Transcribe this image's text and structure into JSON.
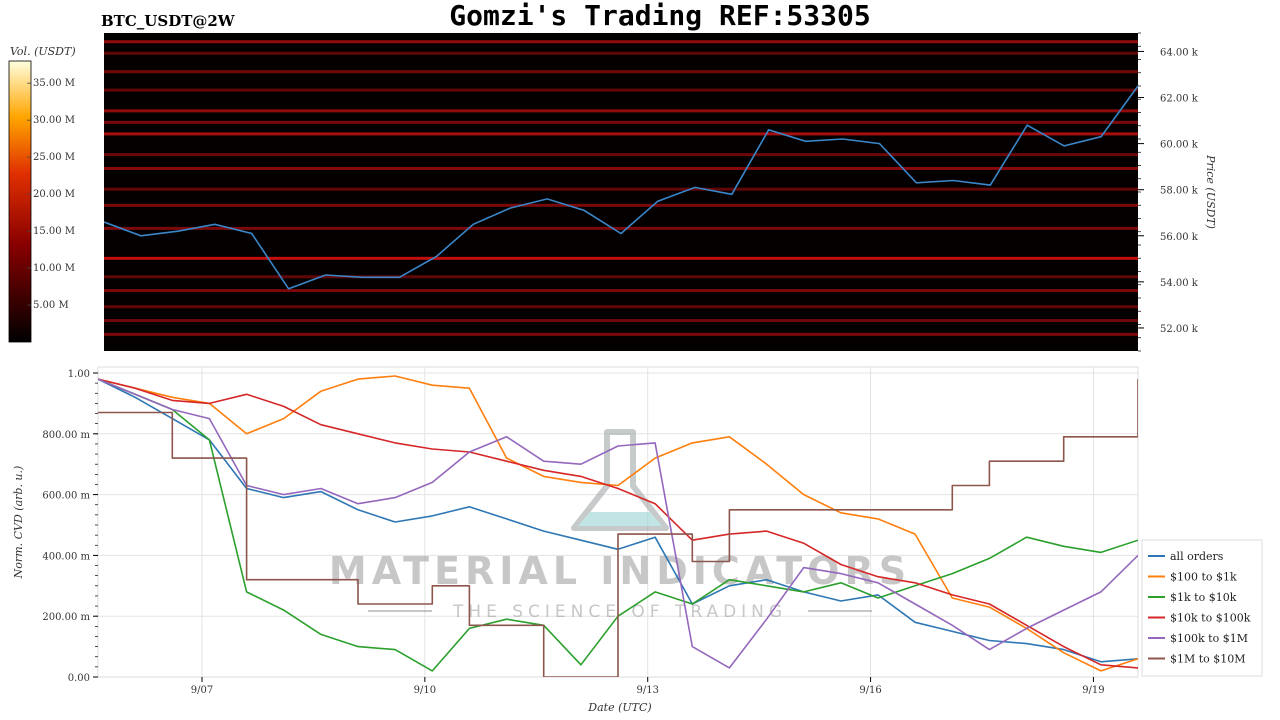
{
  "header": {
    "pair": "BTC_USDT@2W",
    "title": "Gomzi's Trading REF:53305"
  },
  "colors": {
    "heatmap_bg": "#050000",
    "price_line": "#3a86c8",
    "grid": "#e3e3e3"
  },
  "colorbar": {
    "label": "Vol. (USDT)",
    "ticks": [
      "5.00 M",
      "10.00 M",
      "15.00 M",
      "20.00 M",
      "25.00 M",
      "30.00 M",
      "35.00 M"
    ]
  },
  "watermark": {
    "line1": "MATERIAL INDICATORS",
    "line2": "THE SCIENCE OF TRADING"
  },
  "chart_data": [
    {
      "type": "heatmap",
      "title": "BTC_USDT@2W",
      "ylabel": "Price (USDT)",
      "ylim": [
        51000,
        64800
      ],
      "yticks": [
        {
          "v": 52000,
          "label": "52.00 k"
        },
        {
          "v": 54000,
          "label": "54.00 k"
        },
        {
          "v": 56000,
          "label": "56.00 k"
        },
        {
          "v": 58000,
          "label": "58.00 k"
        },
        {
          "v": 60000,
          "label": "60.00 k"
        },
        {
          "v": 62000,
          "label": "62.00 k"
        },
        {
          "v": 64000,
          "label": "64.00 k"
        }
      ],
      "xlim": [
        0,
        14
      ],
      "colorbar_range": [
        0,
        38
      ],
      "price_series": {
        "color": "#3a86c8",
        "x": [
          0,
          0.5,
          1,
          1.5,
          2,
          2.5,
          3,
          3.5,
          4,
          4.5,
          5,
          5.5,
          6,
          6.5,
          7,
          7.5,
          8,
          8.5,
          9,
          9.5,
          10,
          10.5,
          11,
          11.5,
          12,
          12.5,
          13,
          13.5,
          14
        ],
        "y": [
          56600,
          56000,
          56200,
          56500,
          56100,
          53700,
          54300,
          54200,
          54200,
          55100,
          56500,
          57200,
          57600,
          57100,
          56100,
          57500,
          58100,
          57800,
          60600,
          60100,
          60200,
          60000,
          58300,
          58400,
          58200,
          60800,
          59900,
          60300,
          62500
        ]
      },
      "depth_levels": [
        {
          "price": 64400,
          "intensity": 12
        },
        {
          "price": 63900,
          "intensity": 8
        },
        {
          "price": 63100,
          "intensity": 9
        },
        {
          "price": 62300,
          "intensity": 8
        },
        {
          "price": 61400,
          "intensity": 12
        },
        {
          "price": 60900,
          "intensity": 10
        },
        {
          "price": 60400,
          "intensity": 14
        },
        {
          "price": 59500,
          "intensity": 9
        },
        {
          "price": 58900,
          "intensity": 11
        },
        {
          "price": 58000,
          "intensity": 8
        },
        {
          "price": 57300,
          "intensity": 10
        },
        {
          "price": 56300,
          "intensity": 10
        },
        {
          "price": 55000,
          "intensity": 16
        },
        {
          "price": 54200,
          "intensity": 8
        },
        {
          "price": 53600,
          "intensity": 10
        },
        {
          "price": 52900,
          "intensity": 8
        },
        {
          "price": 52300,
          "intensity": 9
        },
        {
          "price": 51700,
          "intensity": 10
        }
      ]
    },
    {
      "type": "line",
      "xlabel": "Date (UTC)",
      "ylabel": "Norm. CVD (arb. u.)",
      "ylim": [
        0,
        1
      ],
      "xlim": [
        0,
        14
      ],
      "xticks": [
        {
          "v": 1.4,
          "label": "9/07"
        },
        {
          "v": 4.4,
          "label": "9/10"
        },
        {
          "v": 7.4,
          "label": "9/13"
        },
        {
          "v": 10.4,
          "label": "9/16"
        },
        {
          "v": 13.4,
          "label": "9/19"
        }
      ],
      "yticks": [
        {
          "v": 0,
          "label": "0.00"
        },
        {
          "v": 0.2,
          "label": "200.00 m"
        },
        {
          "v": 0.4,
          "label": "400.00 m"
        },
        {
          "v": 0.6,
          "label": "600.00 m"
        },
        {
          "v": 0.8,
          "label": "800.00 m"
        },
        {
          "v": 1.0,
          "label": "1.00"
        }
      ],
      "legend_position": "right",
      "x": [
        0,
        0.5,
        1,
        1.5,
        2,
        2.5,
        3,
        3.5,
        4,
        4.5,
        5,
        5.5,
        6,
        6.5,
        7,
        7.5,
        8,
        8.5,
        9,
        9.5,
        10,
        10.5,
        11,
        11.5,
        12,
        12.5,
        13,
        13.5,
        14
      ],
      "series": [
        {
          "name": "all orders",
          "color": "#2f77b4",
          "step": false,
          "values": [
            0.98,
            0.92,
            0.85,
            0.78,
            0.62,
            0.59,
            0.61,
            0.55,
            0.51,
            0.53,
            0.56,
            0.52,
            0.48,
            0.45,
            0.42,
            0.46,
            0.24,
            0.3,
            0.32,
            0.28,
            0.25,
            0.27,
            0.18,
            0.15,
            0.12,
            0.11,
            0.09,
            0.05,
            0.06
          ]
        },
        {
          "name": "$100 to $1k",
          "color": "#ff7f0e",
          "step": false,
          "values": [
            0.98,
            0.95,
            0.92,
            0.9,
            0.8,
            0.85,
            0.94,
            0.98,
            0.99,
            0.96,
            0.95,
            0.72,
            0.66,
            0.64,
            0.63,
            0.72,
            0.77,
            0.79,
            0.7,
            0.6,
            0.54,
            0.52,
            0.47,
            0.26,
            0.23,
            0.16,
            0.08,
            0.02,
            0.06
          ]
        },
        {
          "name": "$1k to $10k",
          "color": "#2ca02c",
          "step": false,
          "values": [
            0.98,
            0.93,
            0.88,
            0.78,
            0.28,
            0.22,
            0.14,
            0.1,
            0.09,
            0.02,
            0.16,
            0.19,
            0.17,
            0.04,
            0.2,
            0.28,
            0.24,
            0.32,
            0.3,
            0.28,
            0.31,
            0.26,
            0.3,
            0.34,
            0.39,
            0.46,
            0.43,
            0.41,
            0.45
          ]
        },
        {
          "name": "$10k to $100k",
          "color": "#d62728",
          "step": false,
          "values": [
            0.98,
            0.95,
            0.91,
            0.9,
            0.93,
            0.89,
            0.83,
            0.8,
            0.77,
            0.75,
            0.74,
            0.71,
            0.68,
            0.66,
            0.62,
            0.57,
            0.45,
            0.47,
            0.48,
            0.44,
            0.37,
            0.33,
            0.31,
            0.27,
            0.24,
            0.17,
            0.1,
            0.04,
            0.03
          ]
        },
        {
          "name": "$100k to $1M",
          "color": "#9467bd",
          "step": false,
          "values": [
            0.98,
            0.93,
            0.88,
            0.85,
            0.63,
            0.6,
            0.62,
            0.57,
            0.59,
            0.64,
            0.74,
            0.79,
            0.71,
            0.7,
            0.76,
            0.77,
            0.1,
            0.03,
            0.19,
            0.36,
            0.34,
            0.31,
            0.24,
            0.17,
            0.09,
            0.16,
            0.22,
            0.28,
            0.4
          ]
        },
        {
          "name": "$1M to $10M",
          "color": "#8c564b",
          "step": true,
          "values": [
            0.87,
            0.87,
            0.72,
            0.72,
            0.32,
            0.32,
            0.32,
            0.24,
            0.24,
            0.3,
            0.17,
            0.17,
            0.0,
            0.0,
            0.47,
            0.47,
            0.38,
            0.55,
            0.55,
            0.55,
            0.55,
            0.55,
            0.55,
            0.63,
            0.71,
            0.71,
            0.79,
            0.79,
            0.98
          ]
        }
      ]
    }
  ]
}
